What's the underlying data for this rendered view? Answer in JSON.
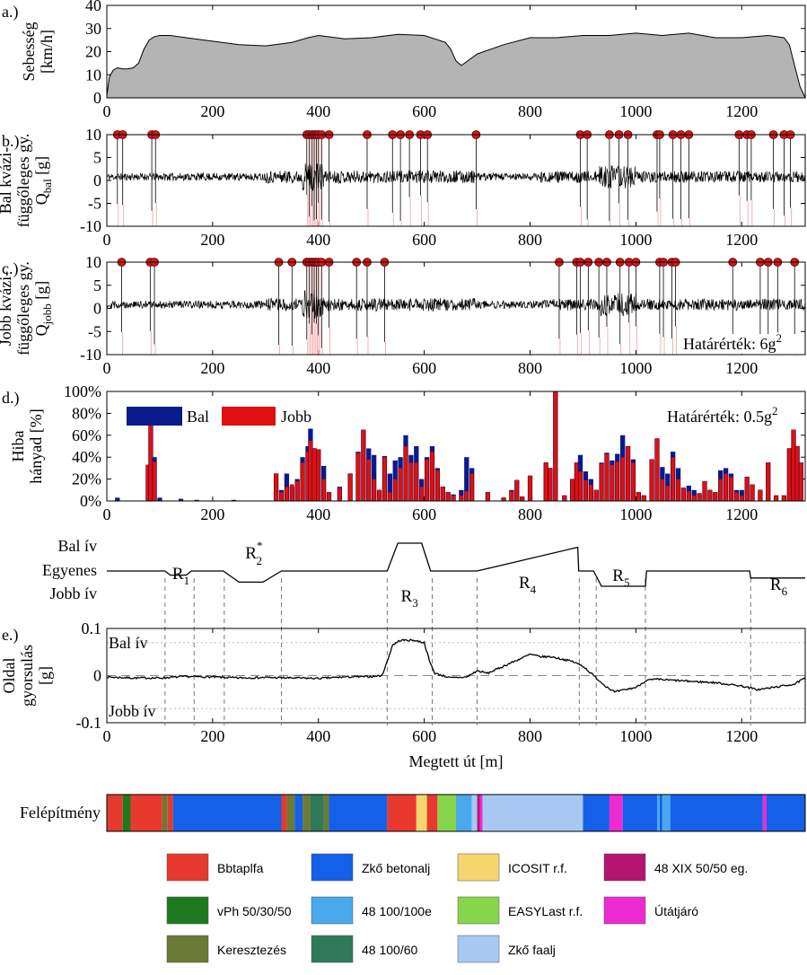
{
  "chart_data": [
    {
      "id": "a",
      "panel_label": "a.)",
      "type": "area",
      "ylabel_lines": [
        "Sebesség",
        "[km/h]"
      ],
      "xlim": [
        0,
        1320
      ],
      "ylim": [
        0,
        40
      ],
      "xticks": [
        0,
        200,
        400,
        600,
        800,
        1000,
        1200
      ],
      "yticks": [
        0,
        10,
        20,
        30,
        40
      ],
      "x": [
        0,
        5,
        12,
        20,
        30,
        40,
        50,
        60,
        70,
        80,
        90,
        100,
        120,
        150,
        200,
        250,
        300,
        350,
        380,
        400,
        450,
        500,
        550,
        600,
        640,
        650,
        660,
        670,
        700,
        750,
        800,
        850,
        900,
        950,
        1000,
        1050,
        1100,
        1150,
        1200,
        1250,
        1280,
        1290,
        1300,
        1310,
        1320
      ],
      "y": [
        1,
        9,
        12,
        13,
        12.5,
        12.5,
        13,
        15,
        21,
        25,
        26.5,
        27,
        27,
        26,
        24.5,
        23,
        22.5,
        24,
        26,
        27,
        25.5,
        26,
        27.5,
        27,
        24,
        21,
        16,
        14,
        19,
        23,
        26,
        26,
        27,
        27,
        28,
        27,
        28,
        26,
        26,
        27,
        26,
        23,
        14,
        5,
        0
      ]
    },
    {
      "id": "b",
      "panel_label": "b.)",
      "type": "line",
      "ylabel_lines": [
        "Bal kvázi-",
        "függőleges gy.",
        "Q_bal [g]"
      ],
      "xlim": [
        0,
        1320
      ],
      "ylim": [
        -10,
        10
      ],
      "xticks": [
        0,
        200,
        400,
        600,
        800,
        1000,
        1200
      ],
      "yticks": [
        -10,
        -5,
        0,
        5,
        10
      ],
      "marker_level": 10,
      "markers": [
        20,
        30,
        85,
        92,
        378,
        383,
        388,
        392,
        396,
        400,
        406,
        420,
        492,
        540,
        555,
        572,
        593,
        606,
        698,
        895,
        908,
        950,
        968,
        985,
        1040,
        1045,
        1070,
        1085,
        1100,
        1195,
        1210,
        1218,
        1260,
        1280,
        1292
      ]
    },
    {
      "id": "c",
      "panel_label": "c.)",
      "type": "line",
      "ylabel_lines": [
        "Jobb kvázi-",
        "függőleges gy.",
        "Q_jobb [g]"
      ],
      "xlim": [
        0,
        1320
      ],
      "ylim": [
        -10,
        10
      ],
      "xticks": [
        0,
        200,
        400,
        600,
        800,
        1000,
        1200
      ],
      "yticks": [
        -10,
        -5,
        0,
        5,
        10
      ],
      "annotation": "Határérték: 6g²",
      "marker_level": 10,
      "markers": [
        28,
        82,
        90,
        325,
        350,
        378,
        383,
        388,
        392,
        396,
        400,
        406,
        420,
        472,
        492,
        525,
        855,
        888,
        895,
        910,
        930,
        945,
        970,
        987,
        1000,
        1045,
        1052,
        1068,
        1075,
        1183,
        1235,
        1250,
        1268,
        1300
      ]
    },
    {
      "id": "d",
      "panel_label": "d.)",
      "type": "bar",
      "ylabel_lines": [
        "Hiba",
        "hányad [%]"
      ],
      "xlim": [
        0,
        1320
      ],
      "ylim": [
        0,
        100
      ],
      "xticks": [
        0,
        200,
        400,
        600,
        800,
        1000,
        1200
      ],
      "yticks": [
        0,
        20,
        40,
        60,
        80,
        100
      ],
      "annotation": "Határérték: 0.5g²",
      "bin_width": 9,
      "series": [
        {
          "name": "Bal",
          "color": "#0a1a8c"
        },
        {
          "name": "Jobb",
          "color": "#e01010"
        }
      ],
      "bins": [
        {
          "x": 20,
          "bal": 3,
          "jobb": 0
        },
        {
          "x": 78,
          "bal": 33,
          "jobb": 33
        },
        {
          "x": 83,
          "bal": 70,
          "jobb": 70
        },
        {
          "x": 90,
          "bal": 40,
          "jobb": 36
        },
        {
          "x": 100,
          "bal": 3,
          "jobb": 0
        },
        {
          "x": 140,
          "bal": 2,
          "jobb": 0
        },
        {
          "x": 170,
          "bal": 1,
          "jobb": 0
        },
        {
          "x": 240,
          "bal": 1,
          "jobb": 0
        },
        {
          "x": 320,
          "bal": 25,
          "jobb": 25
        },
        {
          "x": 330,
          "bal": 10,
          "jobb": 8
        },
        {
          "x": 340,
          "bal": 25,
          "jobb": 13
        },
        {
          "x": 350,
          "bal": 13,
          "jobb": 15
        },
        {
          "x": 360,
          "bal": 20,
          "jobb": 18
        },
        {
          "x": 370,
          "bal": 40,
          "jobb": 35
        },
        {
          "x": 380,
          "bal": 50,
          "jobb": 45
        },
        {
          "x": 385,
          "bal": 66,
          "jobb": 55
        },
        {
          "x": 392,
          "bal": 48,
          "jobb": 48
        },
        {
          "x": 400,
          "bal": 47,
          "jobb": 47
        },
        {
          "x": 410,
          "bal": 32,
          "jobb": 20
        },
        {
          "x": 420,
          "bal": 8,
          "jobb": 8
        },
        {
          "x": 440,
          "bal": 13,
          "jobb": 12
        },
        {
          "x": 460,
          "bal": 25,
          "jobb": 25
        },
        {
          "x": 475,
          "bal": 45,
          "jobb": 44
        },
        {
          "x": 485,
          "bal": 65,
          "jobb": 65
        },
        {
          "x": 495,
          "bal": 48,
          "jobb": 38
        },
        {
          "x": 505,
          "bal": 42,
          "jobb": 20
        },
        {
          "x": 515,
          "bal": 10,
          "jobb": 10
        },
        {
          "x": 525,
          "bal": 41,
          "jobb": 40
        },
        {
          "x": 535,
          "bal": 25,
          "jobb": 8
        },
        {
          "x": 545,
          "bal": 37,
          "jobb": 20
        },
        {
          "x": 555,
          "bal": 40,
          "jobb": 30
        },
        {
          "x": 565,
          "bal": 60,
          "jobb": 50
        },
        {
          "x": 575,
          "bal": 42,
          "jobb": 35
        },
        {
          "x": 585,
          "bal": 50,
          "jobb": 35
        },
        {
          "x": 595,
          "bal": 20,
          "jobb": 13
        },
        {
          "x": 605,
          "bal": 40,
          "jobb": 38
        },
        {
          "x": 615,
          "bal": 50,
          "jobb": 45
        },
        {
          "x": 625,
          "bal": 30,
          "jobb": 28
        },
        {
          "x": 635,
          "bal": 13,
          "jobb": 13
        },
        {
          "x": 645,
          "bal": 8,
          "jobb": 8
        },
        {
          "x": 655,
          "bal": 6,
          "jobb": 5
        },
        {
          "x": 670,
          "bal": 10,
          "jobb": 5
        },
        {
          "x": 680,
          "bal": 40,
          "jobb": 9
        },
        {
          "x": 690,
          "bal": 30,
          "jobb": 25
        },
        {
          "x": 720,
          "bal": 8,
          "jobb": 8
        },
        {
          "x": 750,
          "bal": 3,
          "jobb": 3
        },
        {
          "x": 765,
          "bal": 10,
          "jobb": 9
        },
        {
          "x": 775,
          "bal": 19,
          "jobb": 19
        },
        {
          "x": 785,
          "bal": 4,
          "jobb": 4
        },
        {
          "x": 800,
          "bal": 23,
          "jobb": 23
        },
        {
          "x": 830,
          "bal": 35,
          "jobb": 35
        },
        {
          "x": 838,
          "bal": 30,
          "jobb": 30
        },
        {
          "x": 848,
          "bal": 100,
          "jobb": 100
        },
        {
          "x": 865,
          "bal": 5,
          "jobb": 5
        },
        {
          "x": 880,
          "bal": 20,
          "jobb": 20
        },
        {
          "x": 888,
          "bal": 35,
          "jobb": 35
        },
        {
          "x": 895,
          "bal": 42,
          "jobb": 27
        },
        {
          "x": 905,
          "bal": 27,
          "jobb": 19
        },
        {
          "x": 915,
          "bal": 20,
          "jobb": 15
        },
        {
          "x": 925,
          "bal": 10,
          "jobb": 10
        },
        {
          "x": 935,
          "bal": 35,
          "jobb": 34
        },
        {
          "x": 945,
          "bal": 44,
          "jobb": 43
        },
        {
          "x": 955,
          "bal": 37,
          "jobb": 33
        },
        {
          "x": 965,
          "bal": 43,
          "jobb": 36
        },
        {
          "x": 975,
          "bal": 60,
          "jobb": 40
        },
        {
          "x": 985,
          "bal": 50,
          "jobb": 50
        },
        {
          "x": 995,
          "bal": 38,
          "jobb": 35
        },
        {
          "x": 1005,
          "bal": 8,
          "jobb": 8
        },
        {
          "x": 1015,
          "bal": 5,
          "jobb": 5
        },
        {
          "x": 1030,
          "bal": 38,
          "jobb": 38
        },
        {
          "x": 1040,
          "bal": 57,
          "jobb": 57
        },
        {
          "x": 1050,
          "bal": 31,
          "jobb": 20
        },
        {
          "x": 1060,
          "bal": 25,
          "jobb": 14
        },
        {
          "x": 1070,
          "bal": 45,
          "jobb": 40
        },
        {
          "x": 1080,
          "bal": 30,
          "jobb": 20
        },
        {
          "x": 1090,
          "bal": 12,
          "jobb": 12
        },
        {
          "x": 1100,
          "bal": 14,
          "jobb": 9
        },
        {
          "x": 1110,
          "bal": 10,
          "jobb": 5
        },
        {
          "x": 1120,
          "bal": 7,
          "jobb": 7
        },
        {
          "x": 1130,
          "bal": 18,
          "jobb": 18
        },
        {
          "x": 1140,
          "bal": 10,
          "jobb": 10
        },
        {
          "x": 1150,
          "bal": 8,
          "jobb": 8
        },
        {
          "x": 1160,
          "bal": 28,
          "jobb": 20
        },
        {
          "x": 1170,
          "bal": 30,
          "jobb": 25
        },
        {
          "x": 1180,
          "bal": 25,
          "jobb": 22
        },
        {
          "x": 1190,
          "bal": 10,
          "jobb": 8
        },
        {
          "x": 1200,
          "bal": 10,
          "jobb": 5
        },
        {
          "x": 1210,
          "bal": 22,
          "jobb": 22
        },
        {
          "x": 1220,
          "bal": 15,
          "jobb": 15
        },
        {
          "x": 1235,
          "bal": 10,
          "jobb": 10
        },
        {
          "x": 1250,
          "bal": 35,
          "jobb": 35
        },
        {
          "x": 1265,
          "bal": 5,
          "jobb": 5
        },
        {
          "x": 1280,
          "bal": 5,
          "jobb": 5
        },
        {
          "x": 1290,
          "bal": 48,
          "jobb": 48
        },
        {
          "x": 1298,
          "bal": 65,
          "jobb": 65
        },
        {
          "x": 1305,
          "bal": 50,
          "jobb": 50
        },
        {
          "x": 1312,
          "bal": 35,
          "jobb": 35
        }
      ]
    },
    {
      "id": "curv",
      "type": "line",
      "ylabels": [
        "Bal ív",
        "Egyenes",
        "Jobb ív"
      ],
      "x": [
        0,
        110,
        120,
        150,
        160,
        220,
        250,
        295,
        330,
        530,
        550,
        595,
        612,
        700,
        890,
        892,
        920,
        935,
        1018,
        1020,
        1215,
        1217,
        1320
      ],
      "y": [
        0,
        0,
        -0.3,
        -0.3,
        0,
        0,
        -0.8,
        -0.8,
        0,
        0,
        2,
        2,
        0,
        0,
        1.7,
        0,
        0,
        -1.1,
        -1.1,
        0,
        0,
        -0.5,
        -0.5
      ],
      "dividers": [
        110,
        165,
        222,
        330,
        530,
        615,
        700,
        893,
        925,
        1018,
        1217
      ],
      "segments": [
        {
          "label": "R",
          "sub": "1",
          "sup": "",
          "x": 140
        },
        {
          "label": "R",
          "sub": "2",
          "sup": "*",
          "x": 278
        },
        {
          "label": "R",
          "sub": "3",
          "sup": "",
          "x": 572
        },
        {
          "label": "R",
          "sub": "4",
          "sup": "",
          "x": 795
        },
        {
          "label": "R",
          "sub": "5",
          "sup": "",
          "x": 972
        },
        {
          "label": "R",
          "sub": "6",
          "sup": "",
          "x": 1270
        }
      ]
    },
    {
      "id": "e",
      "panel_label": "e.)",
      "type": "line",
      "ylabel_lines": [
        "Oldal",
        "gyorsulás",
        "[g]"
      ],
      "xlabel": "Megtett út [m]",
      "xlim": [
        0,
        1320
      ],
      "ylim": [
        -0.1,
        0.1
      ],
      "xticks": [
        0,
        200,
        400,
        600,
        800,
        1000,
        1200
      ],
      "yticks": [
        -0.1,
        0,
        0.1
      ],
      "inner_labels": [
        "Bal ív",
        "Jobb ív"
      ],
      "x": [
        0,
        50,
        100,
        150,
        200,
        250,
        300,
        350,
        400,
        450,
        500,
        520,
        530,
        540,
        555,
        580,
        600,
        610,
        620,
        650,
        680,
        700,
        720,
        740,
        760,
        780,
        800,
        820,
        840,
        860,
        880,
        900,
        920,
        940,
        960,
        980,
        1000,
        1020,
        1040,
        1100,
        1150,
        1200,
        1230,
        1260,
        1300,
        1320
      ],
      "y": [
        -0.003,
        -0.005,
        -0.005,
        -0.002,
        -0.003,
        -0.005,
        -0.004,
        -0.005,
        -0.006,
        -0.003,
        -0.002,
        0,
        0.03,
        0.065,
        0.075,
        0.075,
        0.07,
        0.03,
        0.005,
        -0.005,
        -0.003,
        0.01,
        0.005,
        0.015,
        0.025,
        0.035,
        0.045,
        0.04,
        0.04,
        0.035,
        0.03,
        0.02,
        0.0,
        -0.02,
        -0.035,
        -0.03,
        -0.025,
        -0.01,
        -0.008,
        -0.012,
        -0.015,
        -0.022,
        -0.03,
        -0.025,
        -0.018,
        -0.005
      ]
    },
    {
      "id": "build",
      "type": "table",
      "title": "Felépítmény",
      "segments": [
        {
          "from": 0,
          "to": 30,
          "cat": "Bbtaplfa"
        },
        {
          "from": 30,
          "to": 45,
          "cat": "vPh 50/30/50"
        },
        {
          "from": 45,
          "to": 105,
          "cat": "Bbtaplfa"
        },
        {
          "from": 105,
          "to": 115,
          "cat": "Keresztezés"
        },
        {
          "from": 115,
          "to": 125,
          "cat": "Bbtaplfa"
        },
        {
          "from": 125,
          "to": 330,
          "cat": "Zkő betonalj"
        },
        {
          "from": 330,
          "to": 340,
          "cat": "Bbtaplfa"
        },
        {
          "from": 340,
          "to": 355,
          "cat": "Keresztezés"
        },
        {
          "from": 355,
          "to": 370,
          "cat": "Zkő betonalj"
        },
        {
          "from": 370,
          "to": 385,
          "cat": "Keresztezés"
        },
        {
          "from": 385,
          "to": 410,
          "cat": "48 100/60"
        },
        {
          "from": 410,
          "to": 420,
          "cat": "Keresztezés"
        },
        {
          "from": 420,
          "to": 530,
          "cat": "Zkő betonalj"
        },
        {
          "from": 530,
          "to": 585,
          "cat": "Bbtaplfa"
        },
        {
          "from": 585,
          "to": 605,
          "cat": "ICOSIT r.f."
        },
        {
          "from": 605,
          "to": 625,
          "cat": "Bbtaplfa"
        },
        {
          "from": 625,
          "to": 660,
          "cat": "EASYLast r.f."
        },
        {
          "from": 660,
          "to": 690,
          "cat": "48 100/100e"
        },
        {
          "from": 690,
          "to": 700,
          "cat": "Zkő faalj"
        },
        {
          "from": 700,
          "to": 705,
          "cat": "48 XIX 50/50 eg."
        },
        {
          "from": 705,
          "to": 710,
          "cat": "Útátjáró"
        },
        {
          "from": 710,
          "to": 900,
          "cat": "Zkő faalj"
        },
        {
          "from": 900,
          "to": 950,
          "cat": "Zkő betonalj"
        },
        {
          "from": 950,
          "to": 975,
          "cat": "Útátjáró"
        },
        {
          "from": 975,
          "to": 1040,
          "cat": "Zkő betonalj"
        },
        {
          "from": 1040,
          "to": 1045,
          "cat": "48 100/100e"
        },
        {
          "from": 1045,
          "to": 1050,
          "cat": "Zkő betonalj"
        },
        {
          "from": 1050,
          "to": 1065,
          "cat": "48 100/100e"
        },
        {
          "from": 1065,
          "to": 1240,
          "cat": "Zkő betonalj"
        },
        {
          "from": 1240,
          "to": 1247,
          "cat": "Útátjáró"
        },
        {
          "from": 1247,
          "to": 1320,
          "cat": "Zkő betonalj"
        }
      ]
    }
  ],
  "legend": [
    {
      "label": "Bbtaplfa",
      "color": "#e8392e"
    },
    {
      "label": "Zkő betonalj",
      "color": "#1560e8"
    },
    {
      "label": "ICOSIT r.f.",
      "color": "#f4d56e"
    },
    {
      "label": "48 XIX 50/50 eg.",
      "color": "#b4156f"
    },
    {
      "label": "vPh 50/30/50",
      "color": "#1e7a1e"
    },
    {
      "label": "48 100/100e",
      "color": "#4aa8ec"
    },
    {
      "label": "EASYLast r.f.",
      "color": "#86d54b"
    },
    {
      "label": "Útátjáró",
      "color": "#ee2ad3"
    },
    {
      "label": "Keresztezés",
      "color": "#6b7a35"
    },
    {
      "label": "48 100/60",
      "color": "#2e7a58"
    },
    {
      "label": "Zkő faalj",
      "color": "#a8c8f4"
    }
  ]
}
